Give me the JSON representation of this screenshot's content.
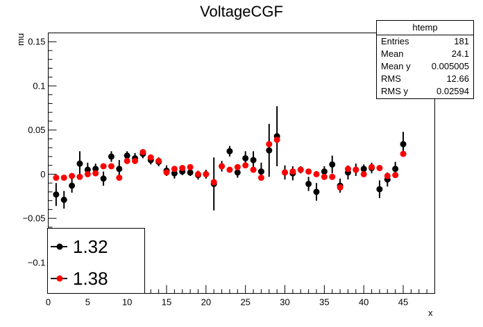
{
  "title": "VoltageCGF",
  "stats": {
    "name": "htemp",
    "rows": [
      {
        "label": "Entries",
        "value": "181"
      },
      {
        "label": "Mean",
        "value": "24.1"
      },
      {
        "label": "Mean y",
        "value": "0.005005"
      },
      {
        "label": "RMS",
        "value": "12.66"
      },
      {
        "label": "RMS y",
        "value": "0.02594"
      }
    ]
  },
  "chart_data": {
    "type": "scatter",
    "title": "VoltageCGF",
    "xlabel": "x",
    "ylabel": "mu",
    "xlim": [
      0,
      49
    ],
    "ylim": [
      -0.135,
      0.16
    ],
    "x_ticks": [
      0,
      5,
      10,
      15,
      20,
      25,
      30,
      35,
      40,
      45
    ],
    "y_ticks": [
      -0.1,
      -0.05,
      0,
      0.05,
      0.1,
      0.15
    ],
    "y_tick_labels": [
      "−0.1",
      "−0.05",
      "0",
      "0.05",
      "0.1",
      "0.15"
    ],
    "legend_position": "bottom-left",
    "series": [
      {
        "name": "1.32",
        "color": "#000000",
        "x": [
          1,
          2,
          3,
          4,
          5,
          6,
          7,
          8,
          9,
          10,
          11,
          12,
          13,
          14,
          15,
          16,
          17,
          18,
          19,
          20,
          21,
          22,
          23,
          24,
          25,
          26,
          27,
          28,
          29,
          30,
          31,
          32,
          33,
          34,
          35,
          36,
          37,
          38,
          39,
          40,
          41,
          42,
          43,
          44,
          45
        ],
        "y": [
          -0.023,
          -0.029,
          -0.013,
          0.012,
          0.005,
          0.006,
          -0.005,
          0.02,
          0.006,
          0.021,
          0.018,
          0.023,
          0.016,
          0.014,
          0.004,
          0.001,
          0.003,
          0.002,
          -0.001,
          0.0,
          -0.011,
          0.009,
          0.026,
          0.002,
          0.018,
          0.016,
          0.003,
          0.027,
          0.043,
          0.002,
          0.001,
          0.005,
          -0.011,
          -0.02,
          0.003,
          0.011,
          -0.013,
          0.002,
          0.005,
          0.006,
          0.007,
          -0.017,
          -0.006,
          0.006,
          0.034
        ],
        "err": [
          0.013,
          0.01,
          0.008,
          0.014,
          0.008,
          0.006,
          0.008,
          0.006,
          0.01,
          0.005,
          0.006,
          0.005,
          0.005,
          0.005,
          0.006,
          0.006,
          0.004,
          0.004,
          0.005,
          0.005,
          0.03,
          0.006,
          0.006,
          0.006,
          0.008,
          0.01,
          0.01,
          0.03,
          0.034,
          0.008,
          0.008,
          0.004,
          0.008,
          0.01,
          0.006,
          0.01,
          0.008,
          0.008,
          0.007,
          0.005,
          0.006,
          0.01,
          0.008,
          0.008,
          0.014
        ]
      },
      {
        "name": "1.38",
        "color": "#ff0000",
        "x": [
          1,
          2,
          3,
          4,
          5,
          6,
          7,
          8,
          9,
          10,
          11,
          12,
          13,
          14,
          15,
          16,
          17,
          18,
          19,
          20,
          21,
          22,
          23,
          24,
          25,
          26,
          27,
          28,
          29,
          30,
          31,
          32,
          33,
          34,
          35,
          36,
          37,
          38,
          39,
          40,
          41,
          42,
          43,
          44,
          45
        ],
        "y": [
          -0.004,
          -0.004,
          -0.002,
          -0.003,
          0.0,
          0.001,
          0.009,
          0.009,
          -0.004,
          0.015,
          0.015,
          0.025,
          0.019,
          0.015,
          0.002,
          0.006,
          0.007,
          0.008,
          0.0,
          0.0,
          -0.009,
          0.009,
          0.005,
          0.008,
          0.01,
          0.005,
          -0.004,
          0.034,
          0.039,
          0.002,
          0.003,
          0.005,
          0.003,
          0.0,
          -0.003,
          -0.003,
          -0.015,
          0.006,
          0.005,
          0.0,
          0.008,
          0.007,
          -0.002,
          -0.001,
          0.023
        ]
      }
    ]
  }
}
